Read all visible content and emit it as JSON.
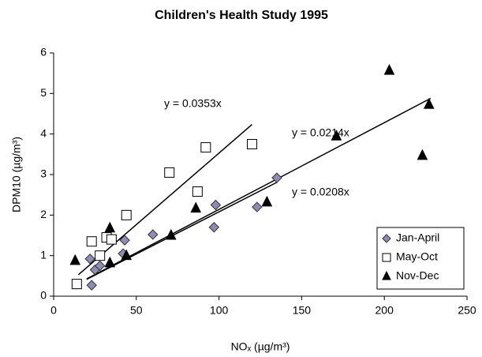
{
  "chart_data": {
    "type": "scatter",
    "title": "Children's Health Study 1995",
    "x_label": "NOₓ (µg/m³)",
    "y_label": "DPM10 (µg/m³)",
    "xlim": [
      0,
      250
    ],
    "xticks": [
      0,
      50,
      100,
      150,
      200,
      250
    ],
    "ylim": [
      0,
      6
    ],
    "yticks": [
      0,
      1,
      2,
      3,
      4,
      5,
      6
    ],
    "legend": "bottom-right",
    "series": [
      {
        "name": "Jan-April",
        "marker": "diamond",
        "color": "#8c8cb4",
        "x": [
          22,
          23,
          25,
          28,
          42,
          43,
          60,
          97,
          98,
          123,
          135
        ],
        "values": [
          0.92,
          0.27,
          0.65,
          0.75,
          1.05,
          1.38,
          1.52,
          1.7,
          2.25,
          2.2,
          2.92
        ]
      },
      {
        "name": "May-Oct",
        "marker": "square",
        "color": "#ffffff",
        "x": [
          14,
          23,
          28,
          32,
          35,
          44,
          70,
          87,
          92,
          120
        ],
        "values": [
          0.3,
          1.35,
          1.0,
          1.45,
          1.4,
          2.0,
          3.05,
          2.58,
          3.67,
          3.75
        ]
      },
      {
        "name": "Nov-Dec",
        "marker": "triangle",
        "color": "#000000",
        "x": [
          13,
          34,
          34,
          44,
          71,
          86,
          129,
          171,
          203,
          223,
          227
        ],
        "values": [
          0.88,
          1.68,
          0.82,
          1.0,
          1.5,
          2.17,
          2.32,
          3.95,
          5.57,
          3.47,
          4.73
        ]
      }
    ],
    "trendlines": [
      {
        "label": "y = 0.0353x",
        "slope": 0.0353,
        "x_range": [
          15,
          120
        ]
      },
      {
        "label": "y = 0.0214x",
        "slope": 0.0214,
        "x_range": [
          20,
          228
        ]
      },
      {
        "label": "y = 0.0208x",
        "slope": 0.0208,
        "x_range": [
          20,
          135
        ]
      }
    ]
  }
}
